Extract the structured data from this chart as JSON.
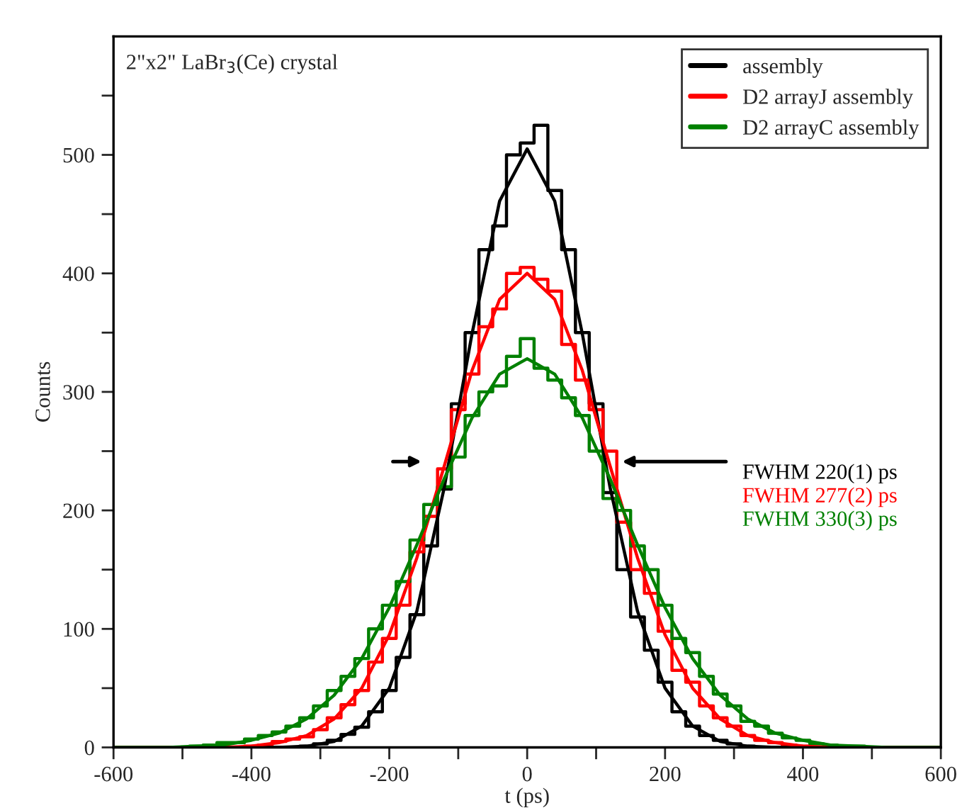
{
  "chart_data": {
    "type": "step",
    "xlabel": "t (ps)",
    "ylabel": "Counts",
    "xlim": [
      -600,
      600
    ],
    "ylim": [
      0,
      600
    ],
    "xticks": [
      -600,
      {
        "value": -500,
        "label": null
      },
      -400,
      {
        "value": -300,
        "label": null
      },
      -200,
      {
        "value": -100,
        "label": null
      },
      0,
      {
        "value": 100,
        "label": null
      },
      200,
      {
        "value": 300,
        "label": null
      },
      400,
      {
        "value": 500,
        "label": null
      },
      600
    ],
    "yticks": [
      0,
      {
        "value": 50,
        "label": null
      },
      100,
      {
        "value": 150,
        "label": null
      },
      200,
      {
        "value": 250,
        "label": null
      },
      300,
      {
        "value": 350,
        "label": null
      },
      400,
      {
        "value": 450,
        "label": null
      },
      500,
      {
        "value": 550,
        "label": null
      }
    ],
    "legend": "top right",
    "grid": false,
    "annotations": [
      "2\"x2\" LaBr$_{3}$(Ce) crystal",
      "FWHM 220(1) ps",
      "FWHM 277(2) ps",
      "FWHM 330(3) ps"
    ],
    "series": [
      {
        "name": "assembly",
        "color": "#000000",
        "x": [
          -600,
          -340,
          -320,
          -300,
          -280,
          -260,
          -240,
          -220,
          -200,
          -180,
          -160,
          -140,
          -120,
          -100,
          -80,
          -60,
          -40,
          -20,
          0,
          20,
          40,
          60,
          80,
          100,
          120,
          140,
          160,
          180,
          200,
          220,
          240,
          260,
          280,
          300,
          320,
          340,
          600
        ],
        "values": [
          0,
          0,
          1,
          3,
          6,
          11,
          17,
          30,
          48,
          76,
          112,
          170,
          218,
          290,
          350,
          420,
          440,
          500,
          510,
          525,
          470,
          420,
          350,
          290,
          215,
          150,
          110,
          82,
          55,
          30,
          18,
          10,
          6,
          3,
          1,
          0,
          0
        ]
      },
      {
        "name": "D2 arrayJ assembly",
        "color": "#ff0000",
        "x": [
          -600,
          -420,
          -400,
          -380,
          -360,
          -340,
          -320,
          -300,
          -280,
          -260,
          -240,
          -220,
          -200,
          -180,
          -160,
          -140,
          -120,
          -100,
          -80,
          -60,
          -40,
          -20,
          0,
          20,
          40,
          60,
          80,
          100,
          120,
          140,
          160,
          180,
          200,
          220,
          240,
          260,
          280,
          300,
          320,
          340,
          360,
          380,
          400,
          420,
          600
        ],
        "values": [
          0,
          0,
          1,
          2,
          5,
          7,
          9,
          15,
          25,
          36,
          48,
          72,
          92,
          120,
          165,
          195,
          235,
          285,
          315,
          355,
          370,
          400,
          405,
          395,
          385,
          340,
          310,
          285,
          250,
          190,
          150,
          130,
          98,
          65,
          55,
          35,
          25,
          18,
          10,
          6,
          4,
          2,
          1,
          0,
          0
        ]
      },
      {
        "name": "D2 arrayC assembly",
        "color": "#008000",
        "x": [
          -600,
          -500,
          -480,
          -460,
          -440,
          -420,
          -400,
          -380,
          -360,
          -340,
          -320,
          -300,
          -280,
          -260,
          -240,
          -220,
          -200,
          -180,
          -160,
          -140,
          -120,
          -100,
          -80,
          -60,
          -40,
          -20,
          0,
          20,
          40,
          60,
          80,
          100,
          120,
          140,
          160,
          180,
          200,
          220,
          240,
          260,
          280,
          300,
          320,
          340,
          360,
          380,
          400,
          420,
          440,
          460,
          480,
          500,
          600
        ],
        "values": [
          0,
          0,
          1,
          2,
          4,
          4,
          7,
          10,
          13,
          18,
          25,
          35,
          48,
          60,
          75,
          100,
          120,
          140,
          175,
          205,
          220,
          245,
          280,
          300,
          305,
          330,
          345,
          320,
          310,
          295,
          280,
          250,
          210,
          200,
          170,
          150,
          120,
          92,
          80,
          60,
          45,
          35,
          22,
          18,
          12,
          8,
          6,
          3,
          2,
          1,
          1,
          0,
          0
        ]
      },
      {
        "type": "line",
        "color": "#000000",
        "x": [
          -600,
          -400,
          -360,
          -320,
          -280,
          -240,
          -200,
          -160,
          -120,
          -80,
          -40,
          0,
          40,
          80,
          120,
          160,
          200,
          240,
          280,
          320,
          360,
          400,
          600
        ],
        "values": [
          0,
          0,
          0,
          1,
          5,
          18,
          50,
          115,
          220,
          349,
          461,
          505,
          461,
          349,
          220,
          115,
          50,
          18,
          5,
          1,
          0,
          0,
          0
        ]
      },
      {
        "type": "line",
        "color": "#ff0000",
        "x": [
          -600,
          -480,
          -440,
          -400,
          -360,
          -320,
          -280,
          -240,
          -200,
          -160,
          -120,
          -80,
          -40,
          0,
          40,
          80,
          120,
          160,
          200,
          240,
          280,
          320,
          360,
          400,
          440,
          480,
          600
        ],
        "values": [
          0,
          0,
          0,
          1,
          4,
          10,
          24,
          50,
          95,
          160,
          238,
          318,
          378,
          400,
          378,
          318,
          238,
          160,
          95,
          50,
          24,
          10,
          4,
          1,
          0,
          0,
          0
        ]
      },
      {
        "type": "line",
        "color": "#008000",
        "x": [
          -600,
          -560,
          -520,
          -480,
          -440,
          -400,
          -360,
          -320,
          -280,
          -240,
          -200,
          -160,
          -120,
          -80,
          -40,
          0,
          40,
          80,
          120,
          160,
          200,
          240,
          280,
          320,
          360,
          400,
          440,
          480,
          520,
          560,
          600
        ],
        "values": [
          0,
          0,
          0,
          1,
          2,
          6,
          12,
          24,
          44,
          75,
          118,
          171,
          227,
          278,
          315,
          328,
          315,
          278,
          227,
          171,
          118,
          75,
          44,
          24,
          12,
          6,
          2,
          1,
          0,
          0,
          0
        ]
      }
    ]
  }
}
